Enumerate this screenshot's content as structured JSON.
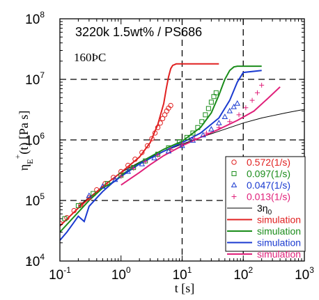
{
  "chart_data": {
    "type": "scatter",
    "title": "3220k 1.5wt% / PS686",
    "annotation": "160ÞC",
    "stray_text": "2",
    "xlabel": "t [s]",
    "ylabel_main": "η",
    "ylabel_sup": "+",
    "ylabel_sub": "E",
    "ylabel_rest": "(t) [Pa s]",
    "x_scale": "log",
    "y_scale": "log",
    "xlim": [
      0.1,
      1000
    ],
    "ylim": [
      10000,
      100000000
    ],
    "grid": "dashed at 10 s, 100 s, 1e5, 1e6, 1e7 Pa s",
    "legend_position": "bottom-right",
    "x_ticks": [
      {
        "value": 0.1,
        "base": "10",
        "exp": "-1"
      },
      {
        "value": 1,
        "base": "10",
        "exp": "0"
      },
      {
        "value": 10,
        "base": "10",
        "exp": "1"
      },
      {
        "value": 100,
        "base": "10",
        "exp": "2"
      },
      {
        "value": 1000,
        "base": "10",
        "exp": "3"
      }
    ],
    "y_ticks": [
      {
        "value": 10000,
        "base": "10",
        "exp": "4"
      },
      {
        "value": 100000,
        "base": "10",
        "exp": "5"
      },
      {
        "value": 1000000,
        "base": "10",
        "exp": "6"
      },
      {
        "value": 10000000,
        "base": "10",
        "exp": "7"
      },
      {
        "value": 100000000,
        "base": "10",
        "exp": "8"
      }
    ],
    "series": [
      {
        "name": "0.572(1/s)",
        "kind": "points",
        "marker": "circle",
        "color": "#e02020",
        "x": [
          0.1,
          0.13,
          0.17,
          0.22,
          0.3,
          0.4,
          0.55,
          0.75,
          1.0,
          1.3,
          1.7,
          2.2,
          2.7,
          3.2,
          3.6,
          4.0,
          4.4,
          4.8,
          5.2,
          5.6,
          6.0,
          6.5
        ],
        "y": [
          42000,
          52000,
          68000,
          85000,
          110000,
          150000,
          190000,
          240000,
          300000,
          380000,
          480000,
          620000,
          800000,
          1050000,
          1300000,
          1600000,
          1900000,
          2250000,
          2600000,
          3000000,
          3350000,
          3700000
        ]
      },
      {
        "name": "0.097(1/s)",
        "kind": "points",
        "marker": "square",
        "color": "#1a8c1a",
        "x": [
          0.12,
          0.2,
          0.35,
          0.6,
          1.0,
          1.6,
          2.5,
          4.0,
          6.0,
          9.0,
          12,
          15,
          18,
          21,
          24,
          27,
          30,
          33,
          36
        ],
        "y": [
          50000,
          82000,
          130000,
          190000,
          260000,
          350000,
          450000,
          580000,
          740000,
          930000,
          1100000,
          1300000,
          1600000,
          2000000,
          2600000,
          3300000,
          4200000,
          5200000,
          6000000
        ]
      },
      {
        "name": "0.047(1/s)",
        "kind": "points",
        "marker": "triangle",
        "color": "#1a3ad0",
        "x": [
          0.3,
          0.5,
          0.8,
          1.3,
          2.2,
          3.5,
          6.0,
          10,
          15,
          22,
          30,
          40,
          50,
          60,
          70,
          80
        ],
        "y": [
          120000,
          170000,
          220000,
          300000,
          400000,
          500000,
          650000,
          800000,
          980000,
          1200000,
          1500000,
          1900000,
          2400000,
          3000000,
          3500000,
          4000000
        ]
      },
      {
        "name": "0.013(1/s)",
        "kind": "points",
        "marker": "plus",
        "color": "#e0207a",
        "x": [
          1.0,
          1.6,
          2.5,
          4.0,
          6.5,
          10,
          16,
          25,
          40,
          60,
          85,
          110,
          140,
          170,
          200
        ],
        "y": [
          250000,
          340000,
          440000,
          560000,
          700000,
          850000,
          1050000,
          1300000,
          1600000,
          2000000,
          2600000,
          3400000,
          4500000,
          6000000,
          8000000
        ]
      },
      {
        "name": "3η",
        "name_sub": "0",
        "kind": "line",
        "color": "#000000",
        "x": [
          0.2,
          0.5,
          1,
          2,
          5,
          10,
          20,
          50,
          100,
          200,
          500,
          1000
        ],
        "y": [
          80000,
          170000,
          290000,
          430000,
          650000,
          850000,
          1100000,
          1500000,
          1900000,
          2300000,
          2800000,
          3200000
        ]
      },
      {
        "name": "simulation",
        "kind": "line",
        "color": "#e02020",
        "x": [
          0.1,
          0.2,
          0.5,
          1,
          2,
          3,
          4,
          5,
          5.5,
          6,
          6.5,
          7,
          8,
          10,
          20,
          40
        ],
        "y": [
          38000,
          75000,
          170000,
          290000,
          520000,
          900000,
          1800000,
          4000000,
          7000000,
          11000000,
          15000000,
          17000000,
          18000000,
          18000000,
          18000000,
          18000000
        ]
      },
      {
        "name": "simulation",
        "kind": "line",
        "color": "#1a8c1a",
        "x": [
          0.1,
          0.3,
          0.5,
          0.8,
          1,
          2,
          5,
          10,
          20,
          30,
          40,
          50,
          60,
          70,
          80,
          100,
          200
        ],
        "y": [
          30000,
          100000,
          160000,
          210000,
          260000,
          420000,
          700000,
          950000,
          1600000,
          2800000,
          5500000,
          10000000,
          14000000,
          16000000,
          16500000,
          16500000,
          16500000
        ]
      },
      {
        "name": "simulation",
        "kind": "line",
        "color": "#1a3ad0",
        "x": [
          0.1,
          0.13,
          0.16,
          0.2,
          0.25,
          0.3,
          0.4,
          0.5,
          0.7,
          1,
          2,
          5,
          10,
          20,
          40,
          60,
          80,
          100,
          200
        ],
        "y": [
          22000,
          30000,
          40000,
          55000,
          45000,
          80000,
          110000,
          140000,
          190000,
          250000,
          400000,
          650000,
          900000,
          1300000,
          2300000,
          4500000,
          9000000,
          13000000,
          14000000
        ]
      },
      {
        "name": "simulation",
        "kind": "line",
        "color": "#e0207a",
        "x": [
          1,
          2,
          3,
          5,
          10,
          20,
          40,
          80,
          150,
          250,
          400
        ],
        "y": [
          180000,
          290000,
          390000,
          550000,
          800000,
          1100000,
          1500000,
          2100000,
          3000000,
          4800000,
          7500000
        ]
      }
    ]
  }
}
